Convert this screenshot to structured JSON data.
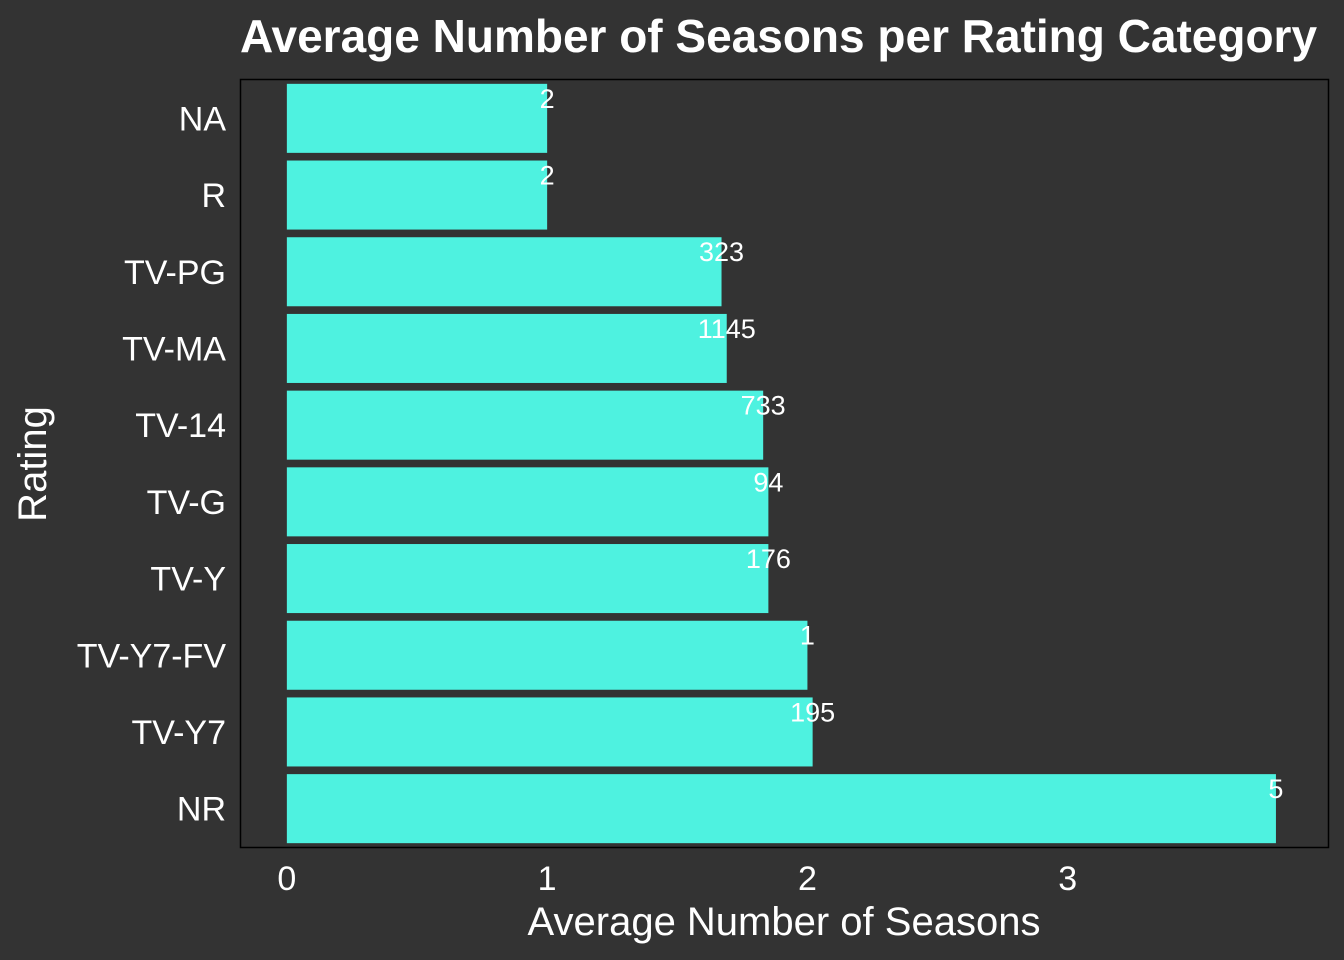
{
  "chart_data": {
    "type": "bar",
    "orientation": "horizontal",
    "title": "Average Number of Seasons per Rating Category",
    "xlabel": "Average Number of Seasons",
    "ylabel": "Rating",
    "categories": [
      "NA",
      "R",
      "TV-PG",
      "TV-MA",
      "TV-14",
      "TV-G",
      "TV-Y",
      "TV-Y7-FV",
      "TV-Y7",
      "NR"
    ],
    "values": [
      1.0,
      1.0,
      1.67,
      1.69,
      1.83,
      1.85,
      1.85,
      2.0,
      2.02,
      3.8
    ],
    "bar_labels": [
      "2",
      "2",
      "323",
      "1145",
      "733",
      "94",
      "176",
      "1",
      "195",
      "5"
    ],
    "xlim": [
      -0.18,
      4.0
    ],
    "xticks": [
      0,
      1,
      2,
      3
    ],
    "grid": false,
    "bar_color": "#4EF2E0",
    "background_color": "#333333",
    "panel_border_color": "#000000",
    "text_color": "#ffffff"
  }
}
